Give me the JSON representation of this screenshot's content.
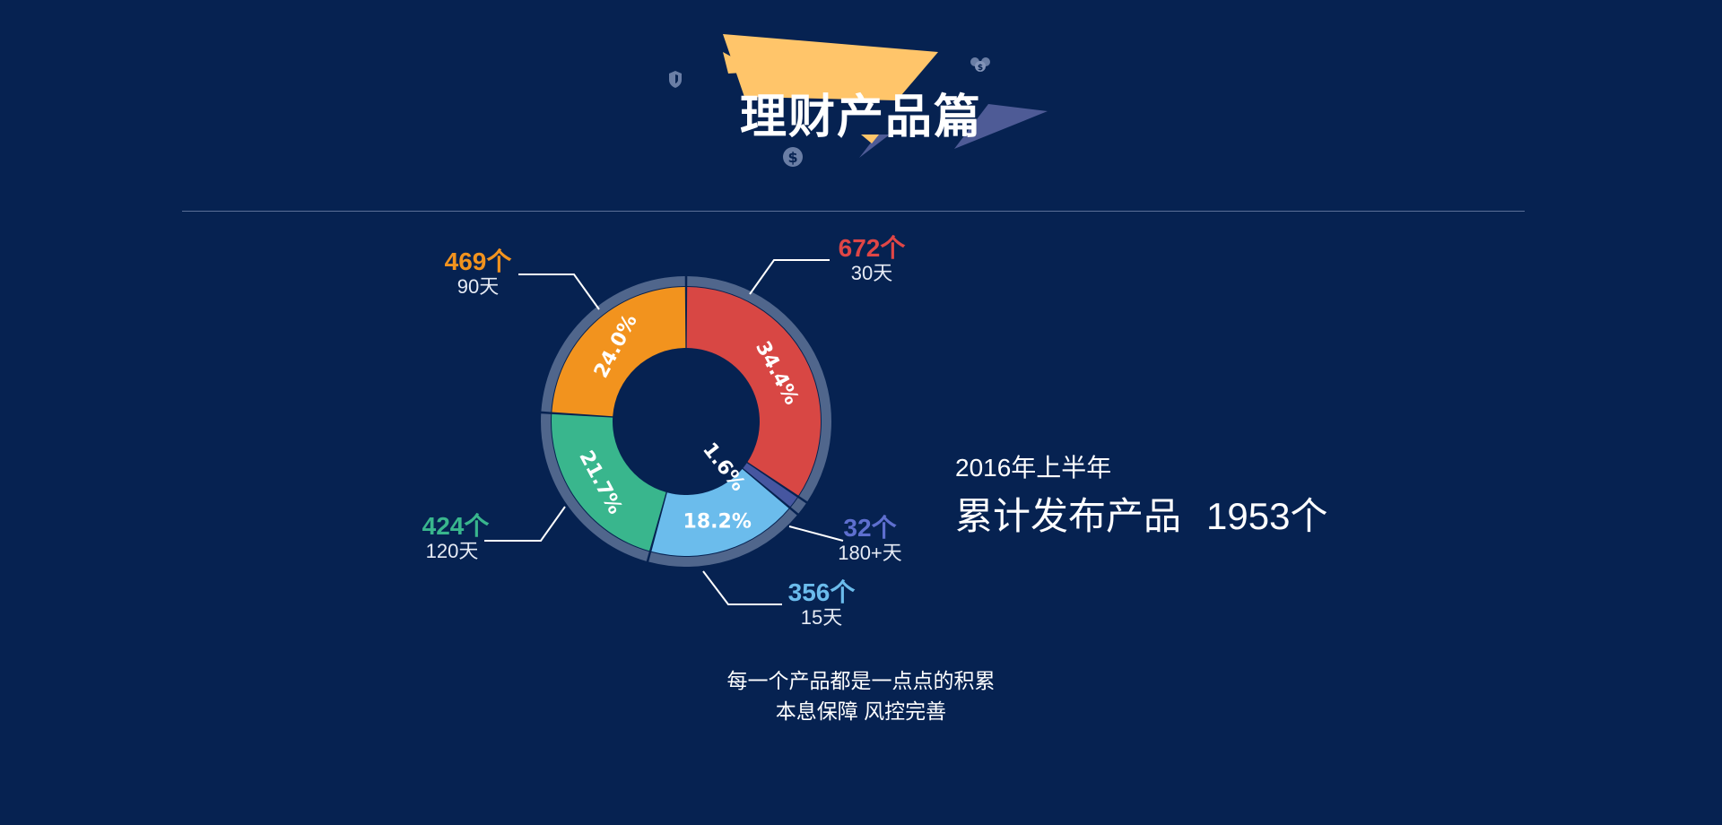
{
  "header": {
    "title": "理财产品篇"
  },
  "summary": {
    "period": "2016年上半年",
    "total_label": "累计发布产品",
    "total_value": "1953个"
  },
  "tagline": {
    "line1": "每一个产品都是一点点的积累",
    "line2": "本息保障 风控完善"
  },
  "chart_data": {
    "type": "pie",
    "donut": true,
    "slices": [
      {
        "label": "30天",
        "count_label": "672个",
        "value": 672,
        "percent_label": "34.4%",
        "color": "#d84744"
      },
      {
        "label": "180+天",
        "count_label": "32个",
        "value": 32,
        "percent_label": "1.6%",
        "color": "#4656a0"
      },
      {
        "label": "15天",
        "count_label": "356个",
        "value": 356,
        "percent_label": "18.2%",
        "color": "#6bbcec"
      },
      {
        "label": "120天",
        "count_label": "424个",
        "value": 424,
        "percent_label": "21.7%",
        "color": "#39b68d"
      },
      {
        "label": "90天",
        "count_label": "469个",
        "value": 469,
        "percent_label": "24.0%",
        "color": "#f2931e"
      }
    ],
    "count_colors": [
      "#e04646",
      "#5e6fcf",
      "#6bbcec",
      "#39b68d",
      "#f2931e"
    ]
  },
  "colors": {
    "background": "#062251",
    "ring": "#50668c",
    "divider": "#5a6f97",
    "banner_yellow": "#ffc56a",
    "banner_purple": "#4e5b96"
  },
  "icons": [
    "shield-icon",
    "dollar-coin-icon",
    "people-money-icon"
  ]
}
